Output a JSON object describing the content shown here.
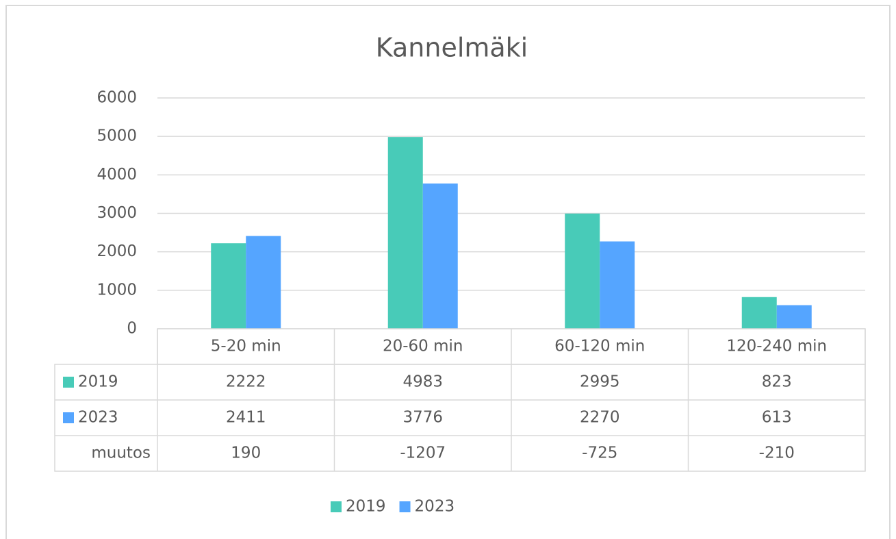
{
  "chart_data": {
    "type": "bar",
    "title": "Kannelmäki",
    "categories": [
      "5-20 min",
      "20-60 min",
      "60-120 min",
      "120-240 min"
    ],
    "series": [
      {
        "name": "2019",
        "color": "#48cbb8",
        "values": [
          2222,
          4983,
          2995,
          823
        ]
      },
      {
        "name": "2023",
        "color": "#55a5ff",
        "values": [
          2411,
          3776,
          2270,
          613
        ]
      }
    ],
    "table_rows": [
      {
        "name": "muutos",
        "values": [
          190,
          -1207,
          -725,
          -210
        ]
      }
    ],
    "ylim": [
      0,
      6000
    ],
    "yticks": [
      0,
      1000,
      2000,
      3000,
      4000,
      5000,
      6000
    ],
    "grid": true,
    "legend": "bottom"
  }
}
